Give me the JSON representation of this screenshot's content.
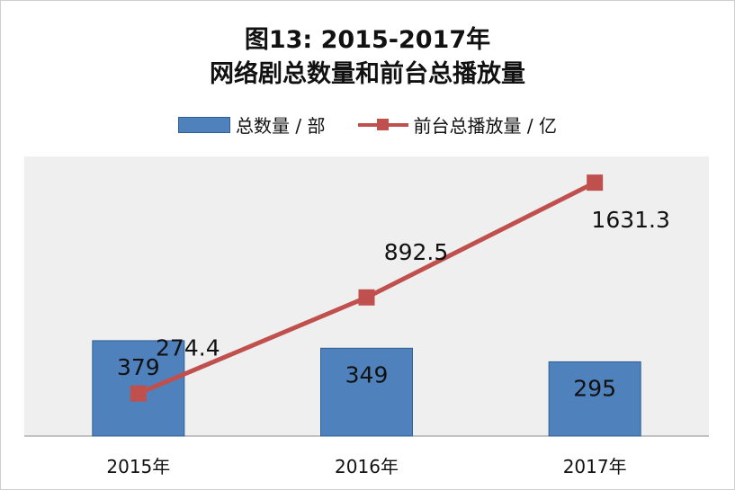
{
  "chart_data": {
    "type": "bar+line",
    "title": "图13: 2015-2017年",
    "subtitle": "网络剧总数量和前台总播放量",
    "categories": [
      "2015年",
      "2016年",
      "2017年"
    ],
    "series": [
      {
        "name": "总数量 / 部",
        "type": "bar",
        "values": [
          379,
          349,
          295
        ],
        "labels": [
          "379",
          "349",
          "295"
        ]
      },
      {
        "name": "前台总播放量 / 亿",
        "type": "line",
        "values": [
          274.4,
          892.5,
          1631.3
        ],
        "labels": [
          "274.4",
          "892.5",
          "1631.3"
        ]
      }
    ],
    "grid": false,
    "legend": "top",
    "colors": {
      "bar": "#4f81bd",
      "bar_border": "#2f5f93",
      "line": "#c0504d",
      "plot_background": "#efefef"
    }
  }
}
